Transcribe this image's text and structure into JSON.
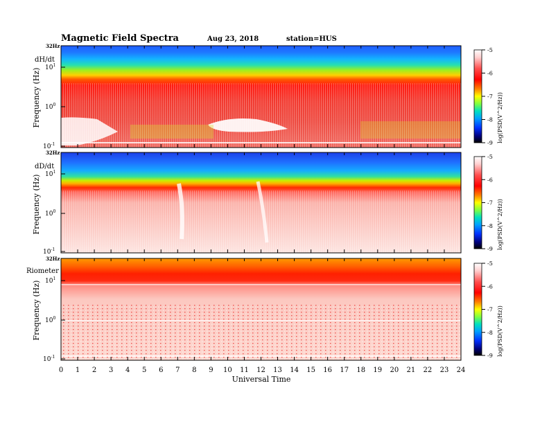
{
  "header": {
    "title": "Magnetic  Field  Spectra",
    "date": "Aug 23, 2018",
    "station": "station=HUS"
  },
  "chart_data": {
    "type": "heatmap",
    "xlabel": "Universal Time",
    "x_ticks": [
      "0",
      "1",
      "2",
      "3",
      "4",
      "5",
      "6",
      "7",
      "8",
      "9",
      "10",
      "11",
      "12",
      "13",
      "14",
      "15",
      "16",
      "17",
      "18",
      "19",
      "20",
      "21",
      "22",
      "23",
      "24"
    ],
    "xlim": [
      0,
      24
    ],
    "colorbar": {
      "label": "log(PSD(V^2/Hz))",
      "ticks": [
        "-5",
        "-6",
        "-7",
        "-8",
        "-9"
      ],
      "range": [
        -9,
        -5
      ],
      "colors": [
        "#000000",
        "#0000a0",
        "#0040ff",
        "#00c0ff",
        "#00ff80",
        "#c0ff00",
        "#ffff00",
        "#ff8000",
        "#ff0000",
        "#ff8080",
        "#ffe0e0",
        "#ffffff"
      ]
    },
    "panels": [
      {
        "name": "dH/dt",
        "ylabel": "Frequency  (Hz)",
        "ylim": [
          0.1,
          32
        ],
        "y_top_label": "32Hz",
        "y_ticks": [
          "10^1",
          "10^0",
          "10^-1"
        ]
      },
      {
        "name": "dD/dt",
        "ylabel": "Frequency  (Hz)",
        "ylim": [
          0.1,
          32
        ],
        "y_top_label": "32Hz",
        "y_ticks": [
          "10^1",
          "10^0",
          "10^-1"
        ]
      },
      {
        "name": "Riometer",
        "ylabel": "Frequency  (Hz)",
        "ylim": [
          0.1,
          32
        ],
        "y_top_label": "32Hz",
        "y_ticks": [
          "10^1",
          "10^0",
          "10^-1"
        ]
      }
    ]
  }
}
